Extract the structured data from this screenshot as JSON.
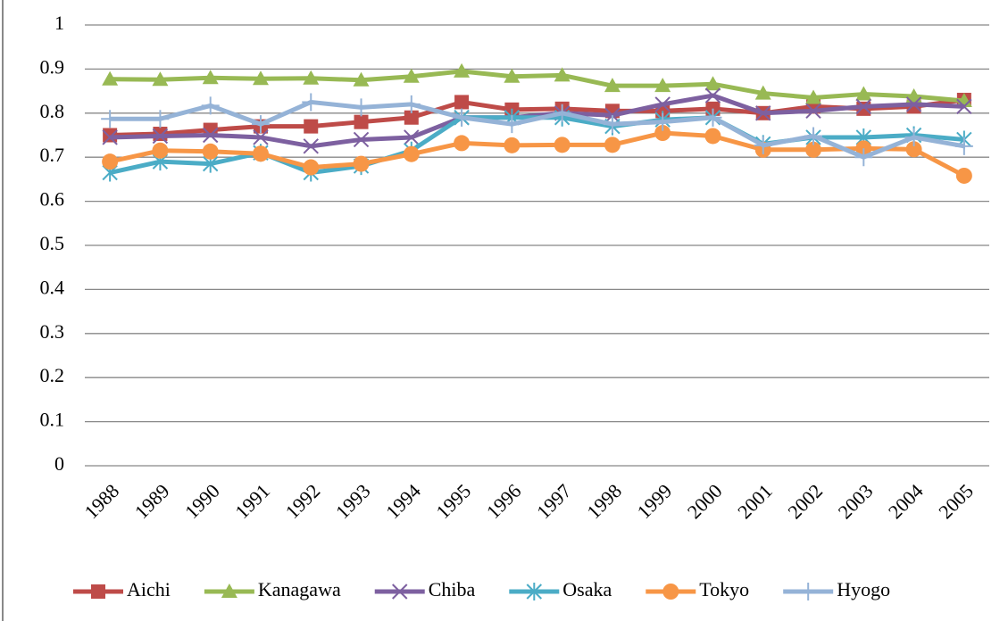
{
  "chart_data": {
    "type": "line",
    "categories": [
      "1988",
      "1989",
      "1990",
      "1991",
      "1992",
      "1993",
      "1994",
      "1995",
      "1996",
      "1997",
      "1998",
      "1999",
      "2000",
      "2001",
      "2002",
      "2003",
      "2004",
      "2005"
    ],
    "series": [
      {
        "name": "Aichi",
        "color": "#be4b48",
        "marker": "square",
        "values": [
          0.75,
          0.753,
          0.762,
          0.77,
          0.77,
          0.78,
          0.79,
          0.825,
          0.808,
          0.81,
          0.805,
          0.805,
          0.81,
          0.8,
          0.815,
          0.81,
          0.815,
          0.83
        ]
      },
      {
        "name": "Kanagawa",
        "color": "#98b954",
        "marker": "triangle",
        "values": [
          0.877,
          0.876,
          0.88,
          0.878,
          0.879,
          0.875,
          0.883,
          0.895,
          0.883,
          0.886,
          0.862,
          0.862,
          0.866,
          0.845,
          0.835,
          0.843,
          0.838,
          0.828
        ]
      },
      {
        "name": "Chiba",
        "color": "#7d60a0",
        "marker": "x",
        "values": [
          0.745,
          0.748,
          0.75,
          0.745,
          0.725,
          0.74,
          0.745,
          0.79,
          0.79,
          0.8,
          0.795,
          0.82,
          0.84,
          0.8,
          0.805,
          0.815,
          0.82,
          0.815
        ]
      },
      {
        "name": "Osaka",
        "color": "#4bacc6",
        "marker": "asterisk",
        "values": [
          0.665,
          0.69,
          0.685,
          0.71,
          0.665,
          0.68,
          0.715,
          0.79,
          0.79,
          0.79,
          0.77,
          0.785,
          0.79,
          0.73,
          0.745,
          0.745,
          0.75,
          0.74
        ]
      },
      {
        "name": "Tokyo",
        "color": "#f79646",
        "marker": "circle",
        "values": [
          0.69,
          0.715,
          0.713,
          0.708,
          0.677,
          0.685,
          0.707,
          0.732,
          0.727,
          0.728,
          0.728,
          0.755,
          0.748,
          0.717,
          0.717,
          0.72,
          0.718,
          0.658
        ]
      },
      {
        "name": "Hyogo",
        "color": "#95b3d7",
        "marker": "plus",
        "values": [
          0.787,
          0.787,
          0.817,
          0.775,
          0.825,
          0.813,
          0.82,
          0.79,
          0.775,
          0.8,
          0.775,
          0.78,
          0.79,
          0.727,
          0.748,
          0.7,
          0.745,
          0.725
        ]
      }
    ],
    "ylim": [
      0,
      1
    ],
    "yticks": [
      0,
      0.1,
      0.2,
      0.3,
      0.4,
      0.5,
      0.6,
      0.7,
      0.8,
      0.9,
      1
    ],
    "grid": true,
    "legend": "bottom"
  }
}
